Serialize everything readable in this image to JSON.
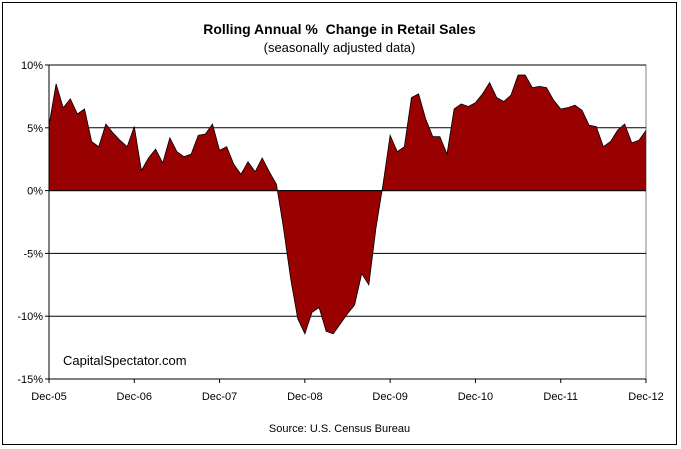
{
  "chart_data": {
    "type": "area",
    "title": "Rolling Annual %  Change in Retail Sales",
    "subtitle": "(seasonally adjusted data)",
    "source": "Source: U.S. Census Bureau",
    "watermark": "CapitalSpectator.com",
    "xlabel": "",
    "ylabel": "",
    "x_tick_labels": [
      "Dec-05",
      "Dec-06",
      "Dec-07",
      "Dec-08",
      "Dec-09",
      "Dec-10",
      "Dec-11",
      "Dec-12"
    ],
    "y_ticks": [
      10,
      5,
      0,
      -5,
      -10,
      -15
    ],
    "y_tick_labels": [
      "10%",
      "5%",
      "0%",
      "-5%",
      "-10%",
      "-15%"
    ],
    "ylim": [
      -15,
      10
    ],
    "xlim_months": [
      0,
      84
    ],
    "grid": true,
    "colors": {
      "fill": "#990000",
      "line": "#000000"
    },
    "series": [
      {
        "months": [
          0,
          1,
          2,
          3,
          4,
          5,
          6,
          7,
          8,
          9,
          10,
          11,
          12,
          13,
          14,
          15,
          16,
          17,
          18,
          19,
          20,
          21,
          22,
          23,
          24,
          25,
          26,
          27,
          28,
          29,
          30,
          31,
          32,
          33,
          34,
          35,
          36,
          37,
          38,
          39,
          40,
          41,
          42,
          43,
          44,
          45,
          46,
          47,
          48,
          49,
          50,
          51,
          52,
          53,
          54,
          55,
          56,
          57,
          58,
          59,
          60,
          61,
          62,
          63,
          64,
          65,
          66,
          67,
          68,
          69,
          70,
          71,
          72,
          73,
          74,
          75,
          76,
          77,
          78,
          79,
          80,
          81,
          82,
          83,
          84
        ],
        "values": [
          5.2,
          8.5,
          6.6,
          7.3,
          6.1,
          6.5,
          3.9,
          3.5,
          5.3,
          4.6,
          4.0,
          3.5,
          5.1,
          1.6,
          2.6,
          3.3,
          2.2,
          4.2,
          3.1,
          2.7,
          2.9,
          4.4,
          4.5,
          5.3,
          3.2,
          3.5,
          2.1,
          1.3,
          2.3,
          1.5,
          2.6,
          1.5,
          0.5,
          -3.0,
          -7.0,
          -10.2,
          -11.4,
          -9.7,
          -9.3,
          -11.2,
          -11.4,
          -10.6,
          -9.8,
          -9.1,
          -6.6,
          -7.5,
          -3.0,
          0.5,
          4.4,
          3.1,
          3.5,
          7.4,
          7.7,
          5.7,
          4.3,
          4.3,
          2.9,
          6.5,
          6.9,
          6.7,
          7.0,
          7.7,
          8.6,
          7.4,
          7.1,
          7.6,
          9.2,
          9.2,
          8.2,
          8.3,
          8.2,
          7.2,
          6.5,
          6.6,
          6.8,
          6.4,
          5.2,
          5.1,
          3.5,
          3.9,
          4.8,
          5.3,
          3.8,
          4.0,
          4.8
        ]
      }
    ]
  }
}
